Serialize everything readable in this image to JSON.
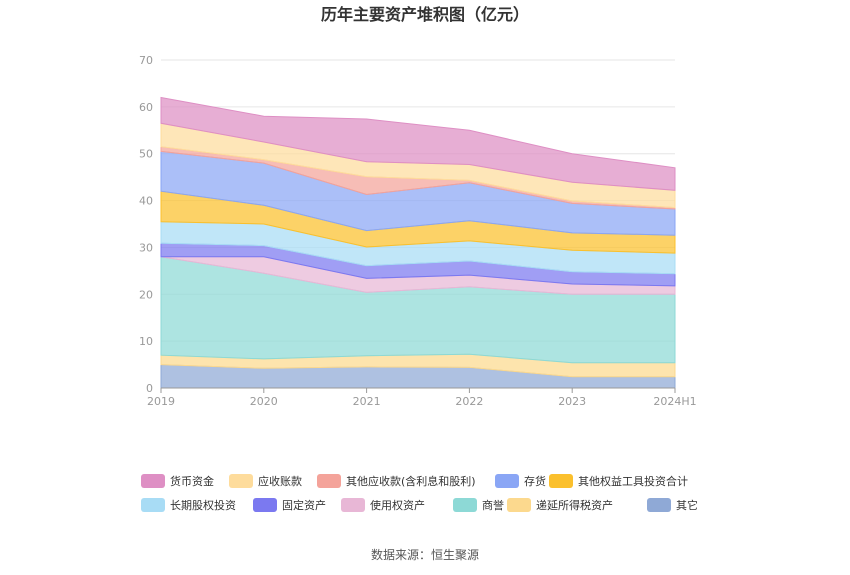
{
  "chart_data": {
    "type": "area",
    "stacked": true,
    "title": "历年主要资产堆积图（亿元）",
    "x": [
      "2019",
      "2020",
      "2021",
      "2022",
      "2023",
      "2024H1"
    ],
    "ylim": [
      0,
      70
    ],
    "yticks": [
      0,
      10,
      20,
      30,
      40,
      50,
      60,
      70
    ],
    "grid": true,
    "legend_placement": "bottom",
    "series": [
      {
        "name": "其它",
        "color": "#8fa9d6",
        "values": [
          5.0,
          4.2,
          4.5,
          4.4,
          2.4,
          2.4
        ]
      },
      {
        "name": "递延所得税资产",
        "color": "#fcd98e",
        "values": [
          2.0,
          2.0,
          2.4,
          2.8,
          3.0,
          3.0
        ]
      },
      {
        "name": "商誉",
        "color": "#8dd9d6",
        "values": [
          21.0,
          18.3,
          13.5,
          14.4,
          14.6,
          14.6
        ]
      },
      {
        "name": "使用权资产",
        "color": "#e8b7d6",
        "values": [
          0.0,
          3.5,
          3.0,
          2.5,
          2.2,
          1.8
        ]
      },
      {
        "name": "固定资产",
        "color": "#7b79f0",
        "values": [
          2.9,
          2.4,
          2.7,
          3.0,
          2.6,
          2.6
        ]
      },
      {
        "name": "长期股权投资",
        "color": "#a8dcf5",
        "values": [
          4.6,
          4.6,
          4.0,
          4.3,
          4.6,
          4.4
        ]
      },
      {
        "name": "其他权益工具投资合计",
        "color": "#fbc02d",
        "values": [
          6.5,
          4.0,
          3.5,
          4.3,
          3.7,
          3.8
        ]
      },
      {
        "name": "存货",
        "color": "#8aa6f5",
        "values": [
          8.5,
          9.0,
          7.7,
          8.1,
          6.3,
          5.6
        ]
      },
      {
        "name": "其他应收款(含利息和股利)",
        "color": "#f4a39a",
        "values": [
          1.0,
          0.7,
          3.8,
          0.5,
          0.5,
          0.3
        ]
      },
      {
        "name": "应收账款",
        "color": "#fedc9c",
        "values": [
          5.0,
          3.8,
          3.2,
          3.4,
          4.0,
          3.7
        ]
      },
      {
        "name": "货币资金",
        "color": "#de8fc4",
        "values": [
          5.5,
          5.5,
          9.1,
          7.3,
          6.1,
          4.8
        ]
      }
    ],
    "legend_order": [
      "货币资金",
      "应收账款",
      "其他应收款(含利息和股利)",
      "存货",
      "其他权益工具投资合计",
      "长期股权投资",
      "固定资产",
      "使用权资产",
      "商誉",
      "递延所得税资产",
      "其它"
    ],
    "source": "数据来源：恒生聚源"
  }
}
